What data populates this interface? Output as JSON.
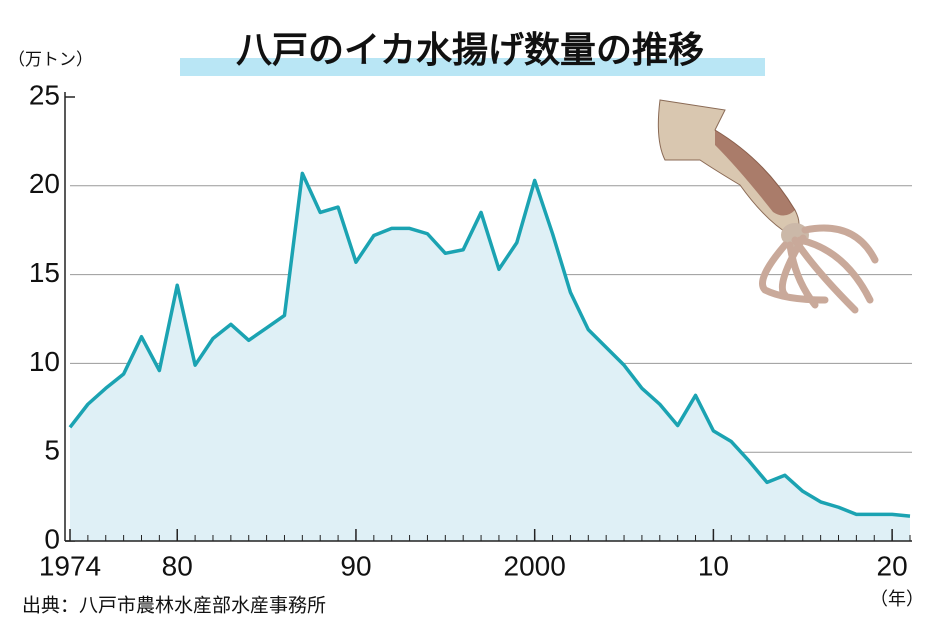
{
  "chart_data": {
    "type": "area",
    "title": "八戸のイカ水揚げ数量の推移",
    "y_unit": "（万トン）",
    "x_unit": "（年）",
    "source": "出典：八戸市農林水産部水産事務所",
    "x": [
      1974,
      1975,
      1976,
      1977,
      1978,
      1979,
      1980,
      1981,
      1982,
      1983,
      1984,
      1985,
      1986,
      1987,
      1988,
      1989,
      1990,
      1991,
      1992,
      1993,
      1994,
      1995,
      1996,
      1997,
      1998,
      1999,
      2000,
      2001,
      2002,
      2003,
      2004,
      2005,
      2006,
      2007,
      2008,
      2009,
      2010,
      2011,
      2012,
      2013,
      2014,
      2015,
      2016,
      2017,
      2018,
      2019,
      2020,
      2021
    ],
    "values": [
      6.4,
      7.7,
      8.6,
      9.4,
      11.5,
      9.6,
      14.4,
      9.9,
      11.4,
      12.2,
      11.3,
      12.0,
      12.7,
      20.7,
      18.5,
      18.8,
      15.7,
      17.2,
      17.6,
      17.6,
      17.3,
      16.2,
      16.4,
      18.5,
      15.3,
      16.8,
      20.3,
      17.3,
      14.0,
      11.9,
      10.9,
      9.9,
      8.6,
      7.7,
      6.5,
      8.2,
      6.2,
      5.6,
      4.5,
      3.3,
      3.7,
      2.8,
      2.2,
      1.9,
      1.5,
      1.5,
      1.5,
      1.4
    ],
    "color": "#1ba3b2",
    "fill": "#dff0f6",
    "xlim": [
      1974,
      2021
    ],
    "ylim": [
      0,
      25
    ],
    "xticks": [
      {
        "value": 1974,
        "label": "1974"
      },
      {
        "value": 1980,
        "label": "80"
      },
      {
        "value": 1990,
        "label": "90"
      },
      {
        "value": 2000,
        "label": "2000"
      },
      {
        "value": 2010,
        "label": "10"
      },
      {
        "value": 2020,
        "label": "20"
      }
    ],
    "yticks": [
      0,
      5,
      10,
      15,
      20,
      25
    ],
    "grid": true
  }
}
